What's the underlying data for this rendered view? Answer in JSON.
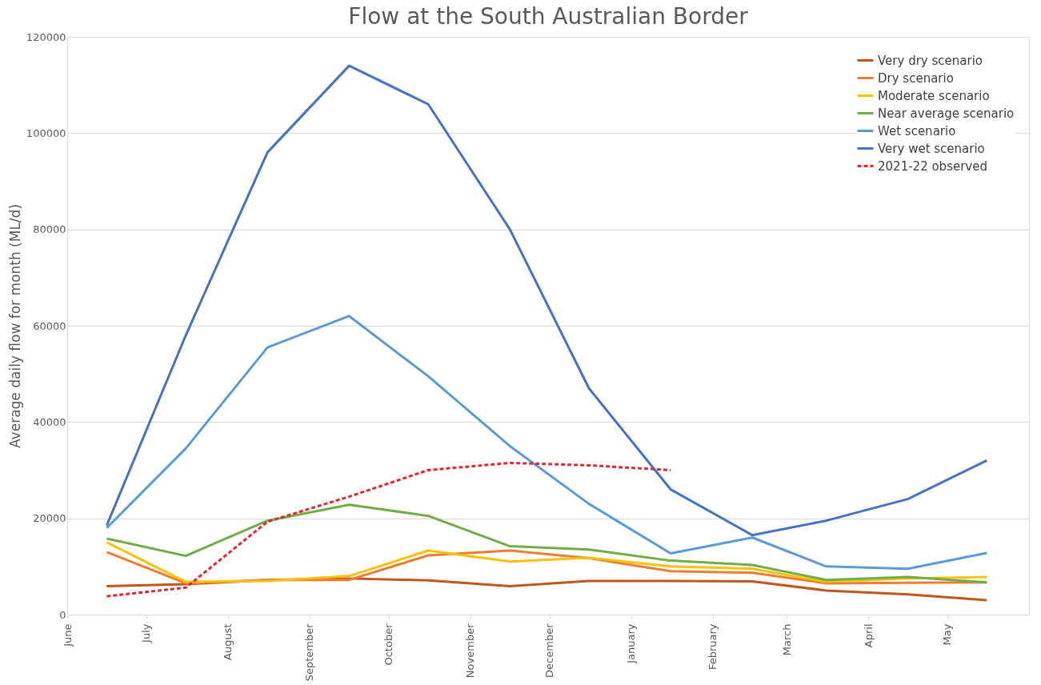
{
  "chart_data": {
    "type": "line",
    "title": "Flow at the South Australian Border",
    "ylabel": "Average daily flow for month (ML/d)",
    "x": [
      "2021-06-16",
      "2021-07-16",
      "2021-08-16",
      "2021-09-16",
      "2021-10-16",
      "2021-11-16",
      "2021-12-16",
      "2022-01-16",
      "2022-02-16",
      "2022-03-16",
      "2022-04-16",
      "2022-05-16"
    ],
    "xlim": [
      "2021-06-01",
      "2022-06-01"
    ],
    "xticks": [
      {
        "value": "2021-06-01",
        "label": "June"
      },
      {
        "value": "2021-07-01",
        "label": "July"
      },
      {
        "value": "2021-08-01",
        "label": "August"
      },
      {
        "value": "2021-09-01",
        "label": "September"
      },
      {
        "value": "2021-10-01",
        "label": "October"
      },
      {
        "value": "2021-11-01",
        "label": "November"
      },
      {
        "value": "2021-12-01",
        "label": "December"
      },
      {
        "value": "2022-01-01",
        "label": "January"
      },
      {
        "value": "2022-02-01",
        "label": "February"
      },
      {
        "value": "2022-03-01",
        "label": "March"
      },
      {
        "value": "2022-04-01",
        "label": "April"
      },
      {
        "value": "2022-05-01",
        "label": "May"
      }
    ],
    "ylim": [
      0,
      120000
    ],
    "yticks": [
      0,
      20000,
      40000,
      60000,
      80000,
      100000,
      120000
    ],
    "grid": "y",
    "legend": "top right",
    "marker": "none",
    "series": [
      {
        "name": "Very dry scenario",
        "color": "#c0561d",
        "line_style": "solid",
        "values": [
          5900,
          6300,
          7200,
          7500,
          7100,
          5900,
          7000,
          7000,
          6900,
          5000,
          4200,
          3000
        ]
      },
      {
        "name": "Dry scenario",
        "color": "#ed7d31",
        "line_style": "solid",
        "values": [
          13000,
          6500,
          7200,
          7200,
          12300,
          13300,
          11700,
          9000,
          8700,
          6500,
          6600,
          6700
        ]
      },
      {
        "name": "Moderate scenario",
        "color": "#ffc000",
        "line_style": "solid",
        "values": [
          15000,
          6800,
          7000,
          8000,
          13300,
          11000,
          11800,
          10000,
          9500,
          6800,
          7500,
          7800
        ]
      },
      {
        "name": "Near average scenario",
        "color": "#70ad47",
        "line_style": "solid",
        "values": [
          15800,
          12200,
          19500,
          22800,
          20500,
          14200,
          13500,
          11200,
          10300,
          7200,
          7800,
          6700
        ]
      },
      {
        "name": "Wet scenario",
        "color": "#5b9bd5",
        "line_style": "solid",
        "values": [
          18000,
          34500,
          55500,
          62000,
          49500,
          35000,
          23000,
          12700,
          16000,
          10000,
          9500,
          12800
        ]
      },
      {
        "name": "Very wet scenario",
        "color": "#4472c4",
        "line_style": "solid",
        "values": [
          18500,
          58000,
          96000,
          114000,
          106000,
          80000,
          47000,
          26000,
          16500,
          19500,
          24000,
          32000
        ]
      },
      {
        "name": "2021-22 observed",
        "color": "#e8242c",
        "line_style": "dashed",
        "values": [
          3800,
          5600,
          19300,
          24500,
          30000,
          31500,
          31000,
          30000,
          null,
          null,
          null,
          null
        ]
      }
    ]
  }
}
